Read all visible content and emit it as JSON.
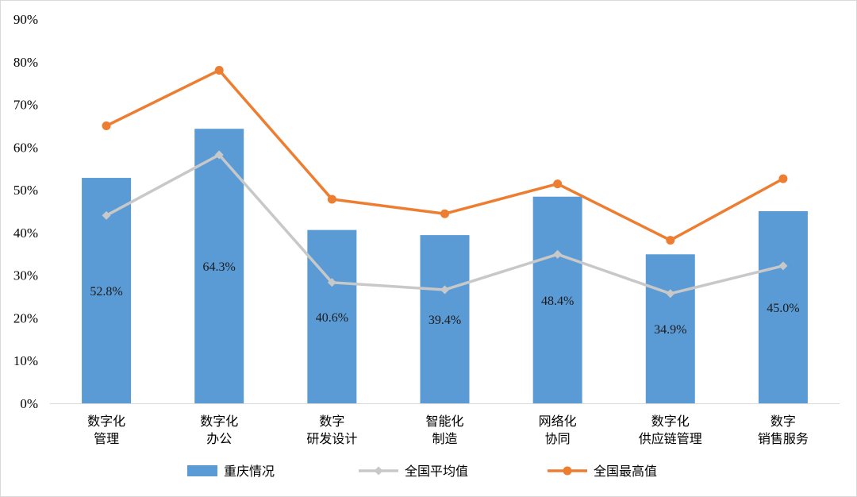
{
  "chart_data": {
    "type": "bar",
    "title": "",
    "xlabel": "",
    "ylabel": "",
    "ylim": [
      0,
      90
    ],
    "yticks": [
      "0%",
      "10%",
      "20%",
      "30%",
      "40%",
      "50%",
      "60%",
      "70%",
      "80%",
      "90%"
    ],
    "grid": false,
    "legend_position": "bottom",
    "categories": [
      [
        "数字化",
        "管理"
      ],
      [
        "数字化",
        "办公"
      ],
      [
        "数字",
        "研发设计"
      ],
      [
        "智能化",
        "制造"
      ],
      [
        "网络化",
        "协同"
      ],
      [
        "数字化",
        "供应链管理"
      ],
      [
        "数字",
        "销售服务"
      ]
    ],
    "series": [
      {
        "name": "重庆情况",
        "type": "bar",
        "color": "#5B9BD5",
        "values": [
          52.8,
          64.3,
          40.6,
          39.4,
          48.4,
          34.9,
          45.0
        ],
        "labels": [
          "52.8%",
          "64.3%",
          "40.6%",
          "39.4%",
          "48.4%",
          "34.9%",
          "45.0%"
        ]
      },
      {
        "name": "全国平均值",
        "type": "line",
        "marker": "diamond",
        "color": "#C8C8C8",
        "values": [
          44.0,
          58.2,
          28.3,
          26.6,
          34.9,
          25.7,
          32.2
        ]
      },
      {
        "name": "全国最高值",
        "type": "line",
        "marker": "circle",
        "color": "#ED7D31",
        "values": [
          65.0,
          78.0,
          47.8,
          44.4,
          51.4,
          38.2,
          52.6
        ]
      }
    ]
  }
}
